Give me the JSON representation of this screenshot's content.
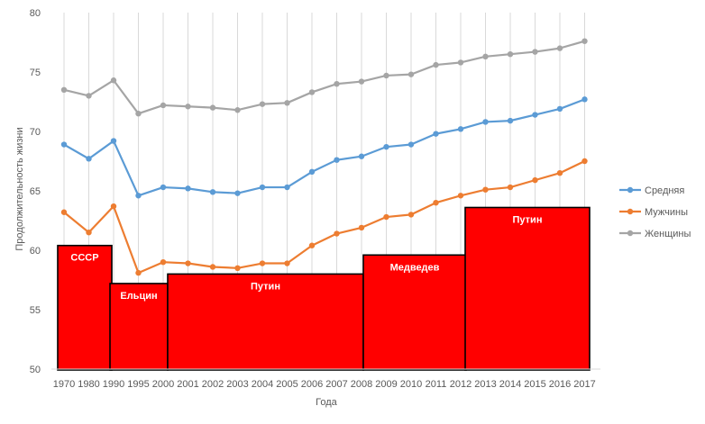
{
  "chart_data": {
    "type": "line",
    "xlabel": "Года",
    "ylabel": "Продолжительность жизни",
    "ylim": [
      50,
      80
    ],
    "yticks": [
      50,
      55,
      60,
      65,
      70,
      75,
      80
    ],
    "grid": "vertical lines at each category",
    "legend_position": "right",
    "categories": [
      "1970",
      "1980",
      "1990",
      "1995",
      "2000",
      "2001",
      "2002",
      "2003",
      "2004",
      "2005",
      "2006",
      "2007",
      "2008",
      "2009",
      "2010",
      "2011",
      "2012",
      "2013",
      "2014",
      "2015",
      "2016",
      "2017"
    ],
    "series": [
      {
        "name": "Средняя",
        "color": "#5B9BD5",
        "values": [
          68.9,
          67.7,
          69.2,
          64.6,
          65.3,
          65.2,
          64.9,
          64.8,
          65.3,
          65.3,
          66.6,
          67.6,
          67.9,
          68.7,
          68.9,
          69.8,
          70.2,
          70.8,
          70.9,
          71.4,
          71.9,
          72.7
        ]
      },
      {
        "name": "Мужчины",
        "color": "#ED7D31",
        "values": [
          63.2,
          61.5,
          63.7,
          58.1,
          59.0,
          58.9,
          58.6,
          58.5,
          58.9,
          58.9,
          60.4,
          61.4,
          61.9,
          62.8,
          63.0,
          64.0,
          64.6,
          65.1,
          65.3,
          65.9,
          66.5,
          67.5
        ]
      },
      {
        "name": "Женщины",
        "color": "#A5A5A5",
        "values": [
          73.5,
          73.0,
          74.3,
          71.5,
          72.2,
          72.1,
          72.0,
          71.8,
          72.3,
          72.4,
          73.3,
          74.0,
          74.2,
          74.7,
          74.8,
          75.6,
          75.8,
          76.3,
          76.5,
          76.7,
          77.0,
          77.6
        ]
      }
    ],
    "eras": [
      {
        "label": "СССР",
        "from": "1970",
        "to": "1990",
        "value": 60.4
      },
      {
        "label": "Ельцин",
        "from": "1990",
        "to": "2000",
        "value": 57.2
      },
      {
        "label": "Путин",
        "from": "2000",
        "to": "2008",
        "value": 58.0
      },
      {
        "label": "Медведев",
        "from": "2008",
        "to": "2012",
        "value": 59.6
      },
      {
        "label": "Путин",
        "from": "2012",
        "to": "2017",
        "value": 63.6
      }
    ],
    "era_color": "#FF0000"
  }
}
